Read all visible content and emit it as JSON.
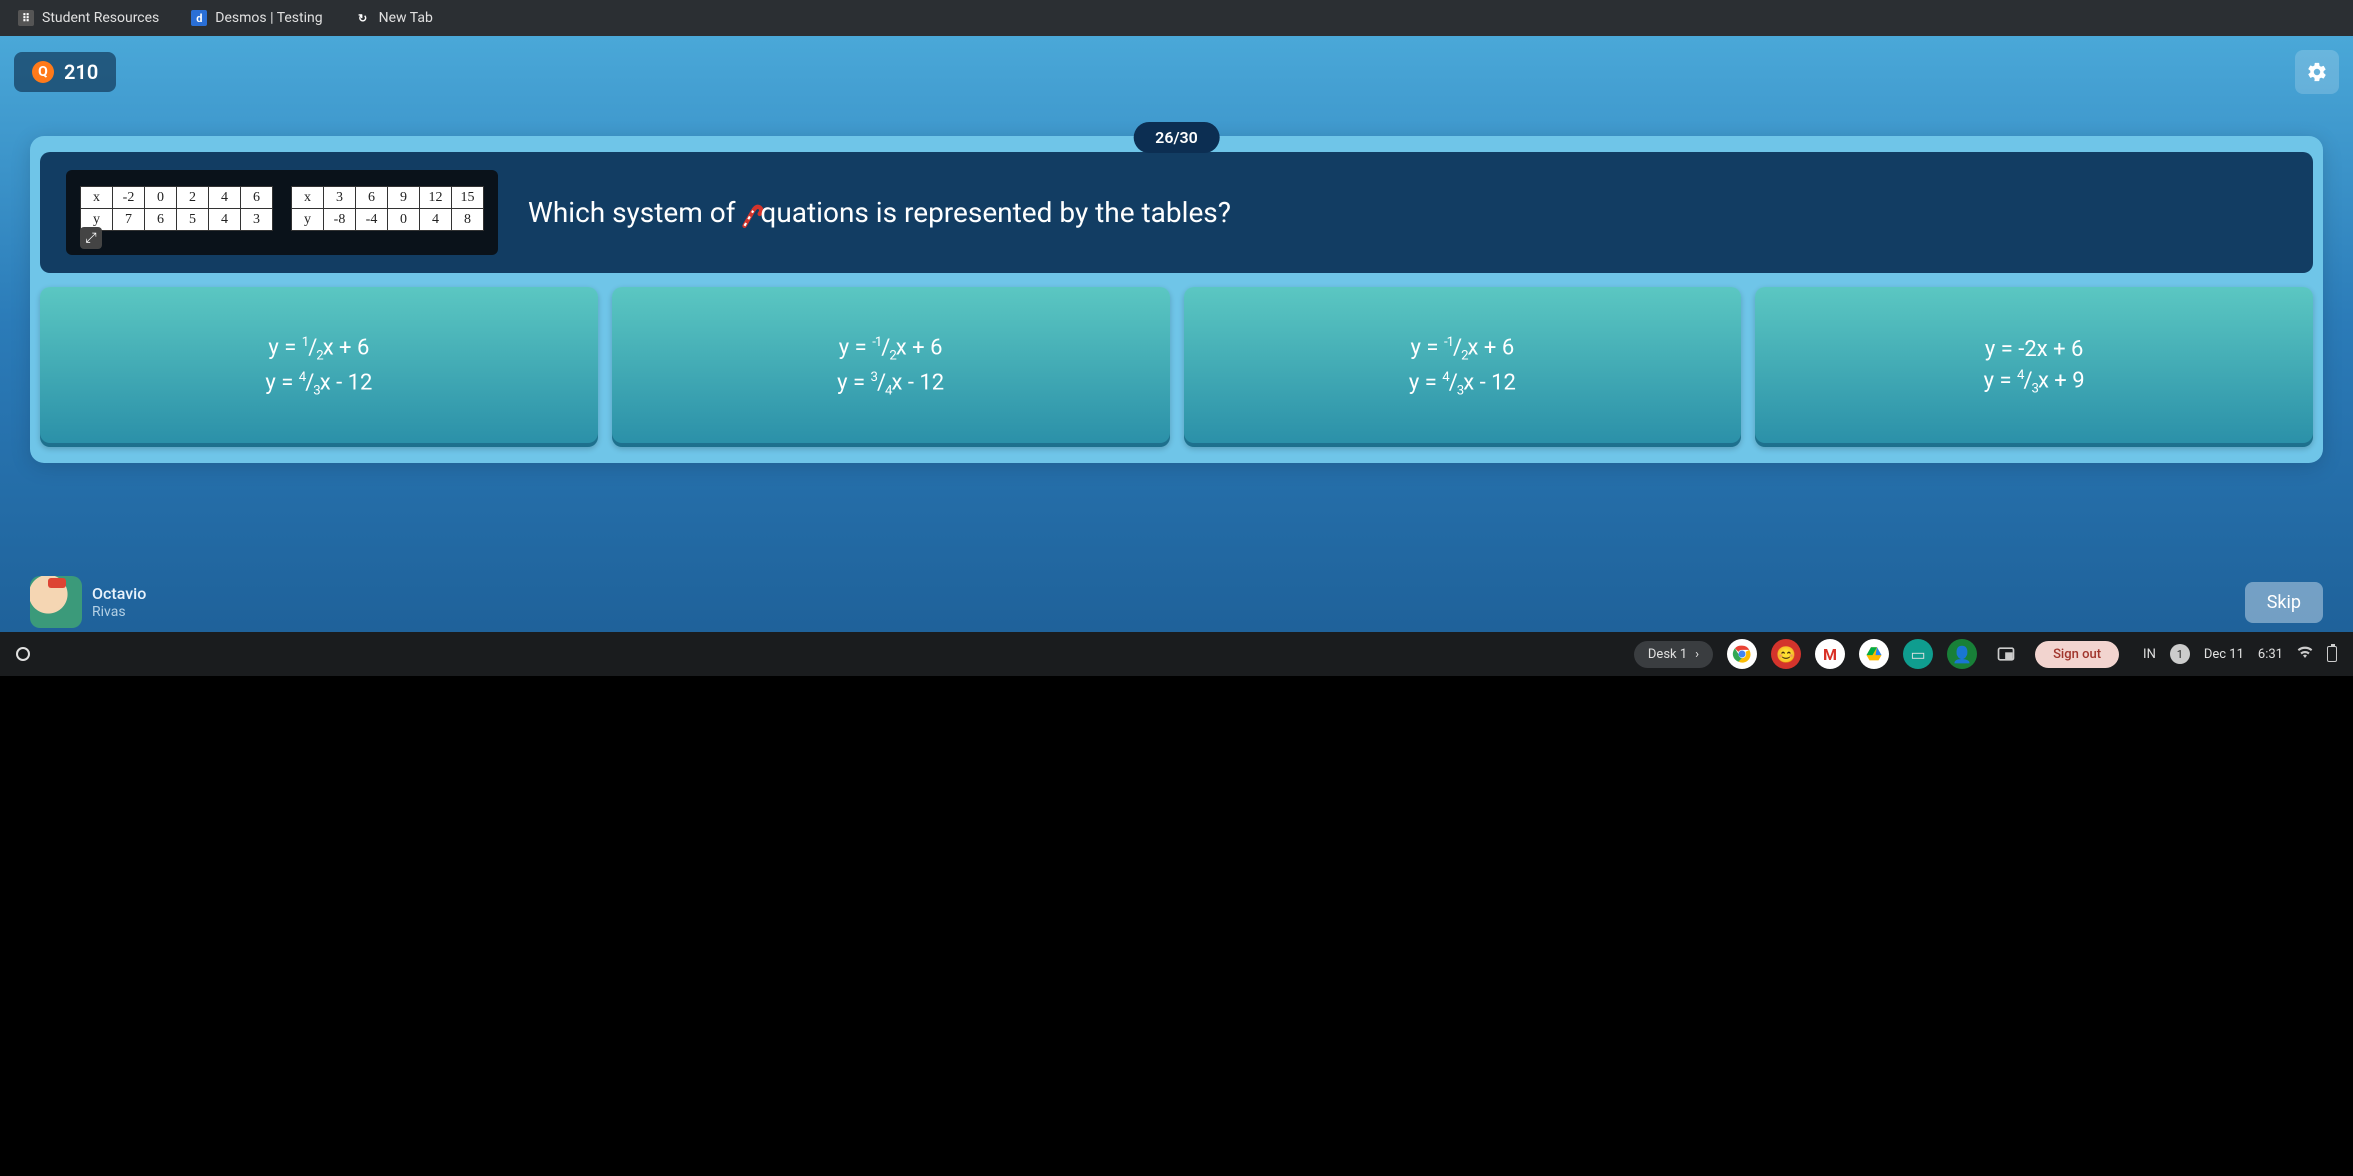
{
  "tabs": [
    {
      "label": "Student Resources",
      "fav": "⇪"
    },
    {
      "label": "Desmos | Testing",
      "fav": "d"
    },
    {
      "label": "New Tab",
      "fav": "↻"
    }
  ],
  "score": "210",
  "progress": "26/30",
  "table1": {
    "row1": [
      "x",
      "-2",
      "0",
      "2",
      "4",
      "6"
    ],
    "row2": [
      "y",
      "7",
      "6",
      "5",
      "4",
      "3"
    ]
  },
  "table2": {
    "row1": [
      "x",
      "3",
      "6",
      "9",
      "12",
      "15"
    ],
    "row2": [
      "y",
      "-8",
      "-4",
      "0",
      "4",
      "8"
    ]
  },
  "question_pre": "Which system of",
  "question_post": "quations is represented by the tables?",
  "answers": {
    "a": {
      "l1_html": "y = <span class='frac'><sup>1</sup>/<sub>2</sub></span>x + 6",
      "l2_html": "y = <span class='frac'><sup>4</sup>/<sub>3</sub></span>x - 12"
    },
    "b": {
      "l1_html": "y = <span class='frac'><sup>-1</sup>/<sub>2</sub></span>x + 6",
      "l2_html": "y = <span class='frac'><sup>3</sup>/<sub>4</sub></span>x - 12"
    },
    "c": {
      "l1_html": "y = <span class='frac'><sup>-1</sup>/<sub>2</sub></span>x + 6",
      "l2_html": "y = <span class='frac'><sup>4</sup>/<sub>3</sub></span>x - 12"
    },
    "d": {
      "l1_html": "y = -2x + 6",
      "l2_html": "y = <span class='frac'><sup>4</sup>/<sub>3</sub></span>x + 9"
    }
  },
  "player": {
    "name": "Octavio",
    "sub": "Rivas"
  },
  "skip_label": "Skip",
  "shelf": {
    "desk": "Desk 1",
    "signout": "Sign out",
    "ime": "IN",
    "notif": "1",
    "date": "Dec 11",
    "time": "6:31"
  },
  "colors": {
    "app_bg_top": "#4aa8d8",
    "app_bg_bottom": "#1d5e96",
    "card_bg": "#6fc5e8",
    "question_bg": "#123d63",
    "answer_top": "#5bc7c2",
    "answer_bottom": "#2a8fa8",
    "pill_bg": "#0c2e52",
    "shelf_bg": "#1a1c1e"
  }
}
